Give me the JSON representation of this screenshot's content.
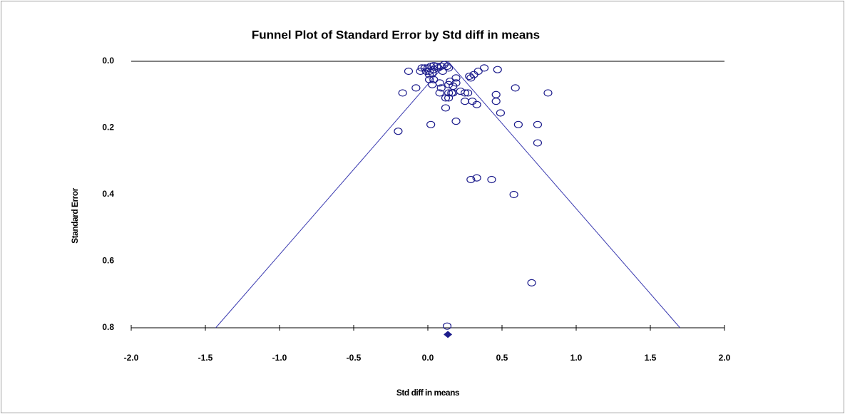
{
  "chart_data": {
    "type": "scatter",
    "title": "Funnel Plot of Standard Error by Std diff in means",
    "x_label": "Std diff in means",
    "y_label": "Standard Error",
    "color": "#1c1c8c",
    "x": [
      -0.13,
      -0.04,
      -0.02,
      0.0,
      0.02,
      0.04,
      0.06,
      0.09,
      0.11,
      0.13,
      -0.01,
      0.01,
      0.04,
      0.1,
      0.14,
      0.01,
      0.03,
      0.01,
      0.04,
      0.08,
      0.03,
      0.09,
      0.15,
      0.14,
      0.19,
      0.19,
      0.17,
      0.14,
      0.17,
      0.16,
      0.22,
      0.25,
      0.27,
      0.08,
      0.12,
      0.14,
      0.25,
      0.3,
      0.33,
      0.12,
      0.28,
      0.31,
      0.34,
      0.38,
      0.47,
      0.29,
      -0.08,
      -0.17,
      0.46,
      0.46,
      0.59,
      0.81,
      0.49,
      0.61,
      0.74,
      0.19,
      0.02,
      -0.2,
      0.74,
      0.29,
      0.33,
      0.43,
      0.58,
      0.7,
      0.13,
      -0.05,
      0.07
    ],
    "y": [
      0.03,
      0.02,
      0.02,
      0.02,
      0.015,
      0.013,
      0.015,
      0.015,
      0.01,
      0.015,
      0.03,
      0.03,
      0.025,
      0.03,
      0.02,
      0.04,
      0.035,
      0.055,
      0.055,
      0.065,
      0.07,
      0.08,
      0.06,
      0.07,
      0.05,
      0.065,
      0.075,
      0.095,
      0.095,
      0.095,
      0.09,
      0.095,
      0.095,
      0.095,
      0.11,
      0.11,
      0.12,
      0.12,
      0.13,
      0.14,
      0.045,
      0.04,
      0.03,
      0.02,
      0.025,
      0.05,
      0.08,
      0.095,
      0.1,
      0.12,
      0.08,
      0.095,
      0.155,
      0.19,
      0.19,
      0.18,
      0.19,
      0.21,
      0.245,
      0.355,
      0.35,
      0.355,
      0.4,
      0.665,
      0.795,
      0.03,
      0.02
    ],
    "funnel_lines": [
      {
        "x": [
          0.135,
          -1.43
        ],
        "y": [
          0,
          0.8
        ]
      },
      {
        "x": [
          0.135,
          1.7
        ],
        "y": [
          0,
          0.8
        ]
      }
    ],
    "summary": {
      "x": 0.135,
      "y": 0.82
    },
    "xlim": [
      -2,
      2
    ],
    "xticks": [
      {
        "value": -2,
        "label": "-2.0"
      },
      -1.5,
      {
        "value": -1,
        "label": "-1.0"
      },
      -0.5,
      {
        "value": 0,
        "label": "0.0"
      },
      0.5,
      {
        "value": 1,
        "label": "1.0"
      },
      1.5,
      {
        "value": 2,
        "label": "2.0"
      }
    ],
    "ylim": [
      0,
      0.8
    ],
    "y_inverted": true,
    "yticks": [
      {
        "value": 0,
        "label": "0.0"
      },
      0.2,
      0.4,
      0.6,
      0.8
    ]
  }
}
